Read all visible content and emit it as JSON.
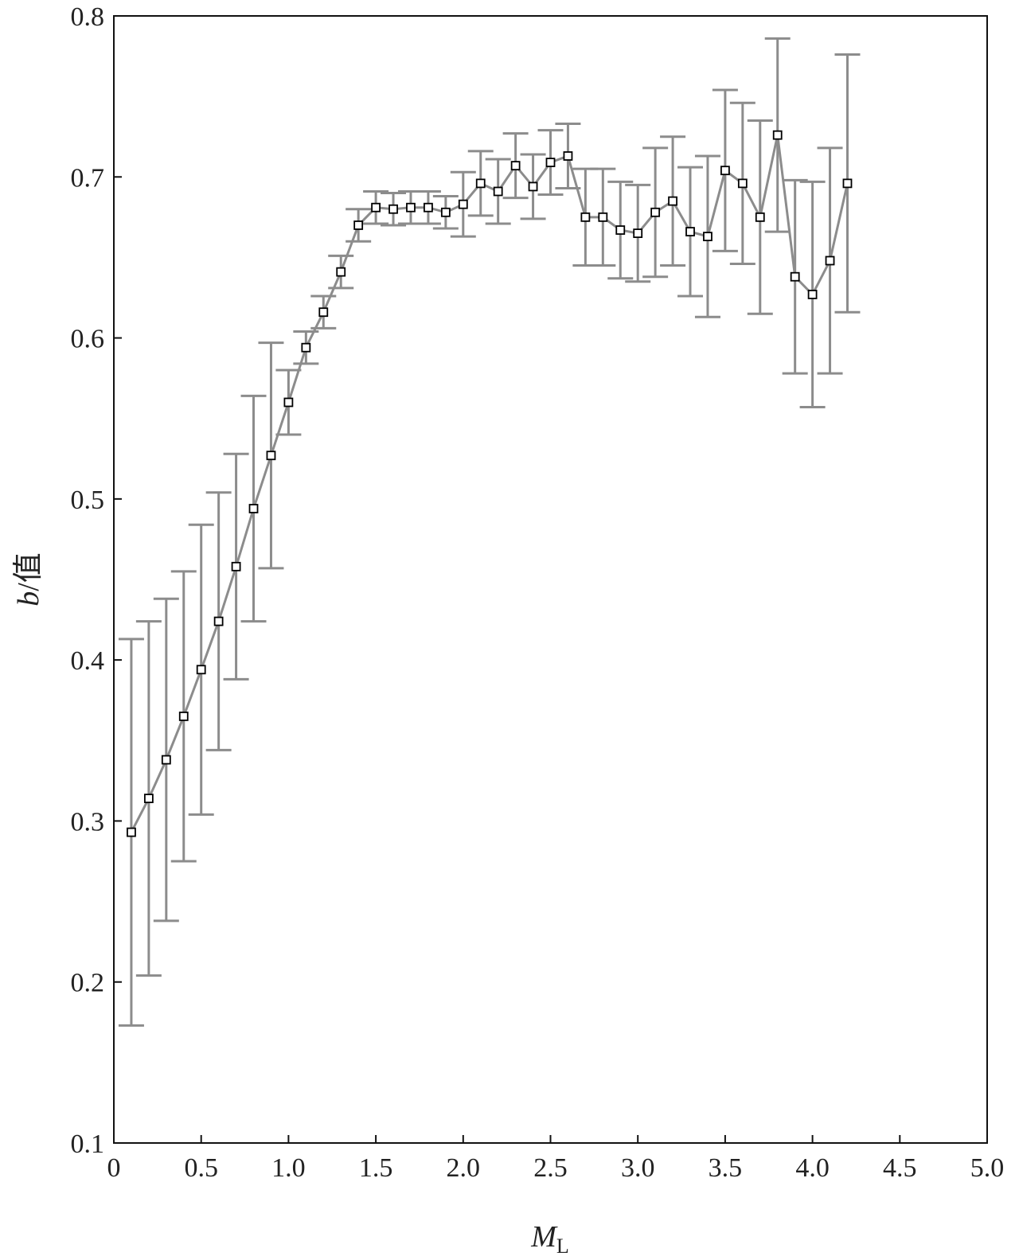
{
  "chart_data": {
    "type": "line",
    "xlabel": "M",
    "xlabel_subscript": "L",
    "ylabel_italic": "b",
    "ylabel_rest": "/值",
    "xlim": [
      0,
      5.0
    ],
    "ylim": [
      0.1,
      0.8
    ],
    "x_ticks": [
      0,
      0.5,
      1.0,
      1.5,
      2.0,
      2.5,
      3.0,
      3.5,
      4.0,
      4.5,
      5.0
    ],
    "x_tick_labels": [
      "0",
      "0.5",
      "1.0",
      "1.5",
      "2.0",
      "2.5",
      "3.0",
      "3.5",
      "4.0",
      "4.5",
      "5.0"
    ],
    "y_ticks": [
      0.1,
      0.2,
      0.3,
      0.4,
      0.5,
      0.6,
      0.7,
      0.8
    ],
    "y_tick_labels": [
      "0.1",
      "0.2",
      "0.3",
      "0.4",
      "0.5",
      "0.6",
      "0.7",
      "0.8"
    ],
    "grid": false,
    "line_color": "#8c8c8c",
    "marker_edge_color": "#000000",
    "marker_face_color": "#ffffff",
    "series": [
      {
        "x": [
          0.1,
          0.2,
          0.3,
          0.4,
          0.5,
          0.6,
          0.7,
          0.8,
          0.9,
          1.0,
          1.1,
          1.2,
          1.3,
          1.4,
          1.5,
          1.6,
          1.7,
          1.8,
          1.9,
          2.0,
          2.1,
          2.2,
          2.3,
          2.4,
          2.5,
          2.6,
          2.7,
          2.8,
          2.9,
          3.0,
          3.1,
          3.2,
          3.3,
          3.4,
          3.5,
          3.6,
          3.7,
          3.8,
          3.9,
          4.0,
          4.1,
          4.2
        ],
        "y": [
          0.293,
          0.314,
          0.338,
          0.365,
          0.394,
          0.424,
          0.458,
          0.494,
          0.527,
          0.56,
          0.594,
          0.616,
          0.641,
          0.67,
          0.681,
          0.68,
          0.681,
          0.681,
          0.678,
          0.683,
          0.696,
          0.691,
          0.707,
          0.694,
          0.709,
          0.713,
          0.675,
          0.675,
          0.667,
          0.665,
          0.678,
          0.685,
          0.666,
          0.663,
          0.704,
          0.696,
          0.675,
          0.726,
          0.638,
          0.627,
          0.648,
          0.696
        ],
        "err": [
          0.12,
          0.11,
          0.1,
          0.09,
          0.09,
          0.08,
          0.07,
          0.07,
          0.07,
          0.02,
          0.01,
          0.01,
          0.01,
          0.01,
          0.01,
          0.01,
          0.01,
          0.01,
          0.01,
          0.02,
          0.02,
          0.02,
          0.02,
          0.02,
          0.02,
          0.02,
          0.03,
          0.03,
          0.03,
          0.03,
          0.04,
          0.04,
          0.04,
          0.05,
          0.05,
          0.05,
          0.06,
          0.06,
          0.06,
          0.07,
          0.07,
          0.08
        ]
      }
    ]
  }
}
